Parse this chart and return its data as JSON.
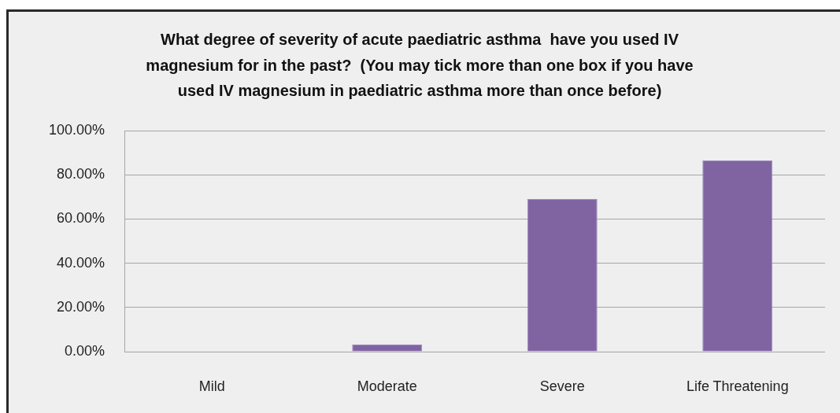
{
  "chart_data": {
    "type": "bar",
    "title": "What degree of severity of acute paediatric asthma  have you used IV magnesium for in the past?  (You may tick more than one box if you have used IV magnesium in paediatric asthma more than once before)",
    "categories": [
      "Mild",
      "Moderate",
      "Severe",
      "Life Threatening"
    ],
    "values": [
      0,
      3.2,
      69,
      86.5
    ],
    "color": "#8064a2",
    "ylim": [
      0,
      100
    ],
    "yticks": [
      {
        "value": 0,
        "label": "0.00%"
      },
      {
        "value": 20,
        "label": "20.00%"
      },
      {
        "value": 40,
        "label": "40.00%"
      },
      {
        "value": 60,
        "label": "60.00%"
      },
      {
        "value": 80,
        "label": "80.00%"
      },
      {
        "value": 100,
        "label": "100.00%"
      }
    ],
    "grid": "y"
  }
}
